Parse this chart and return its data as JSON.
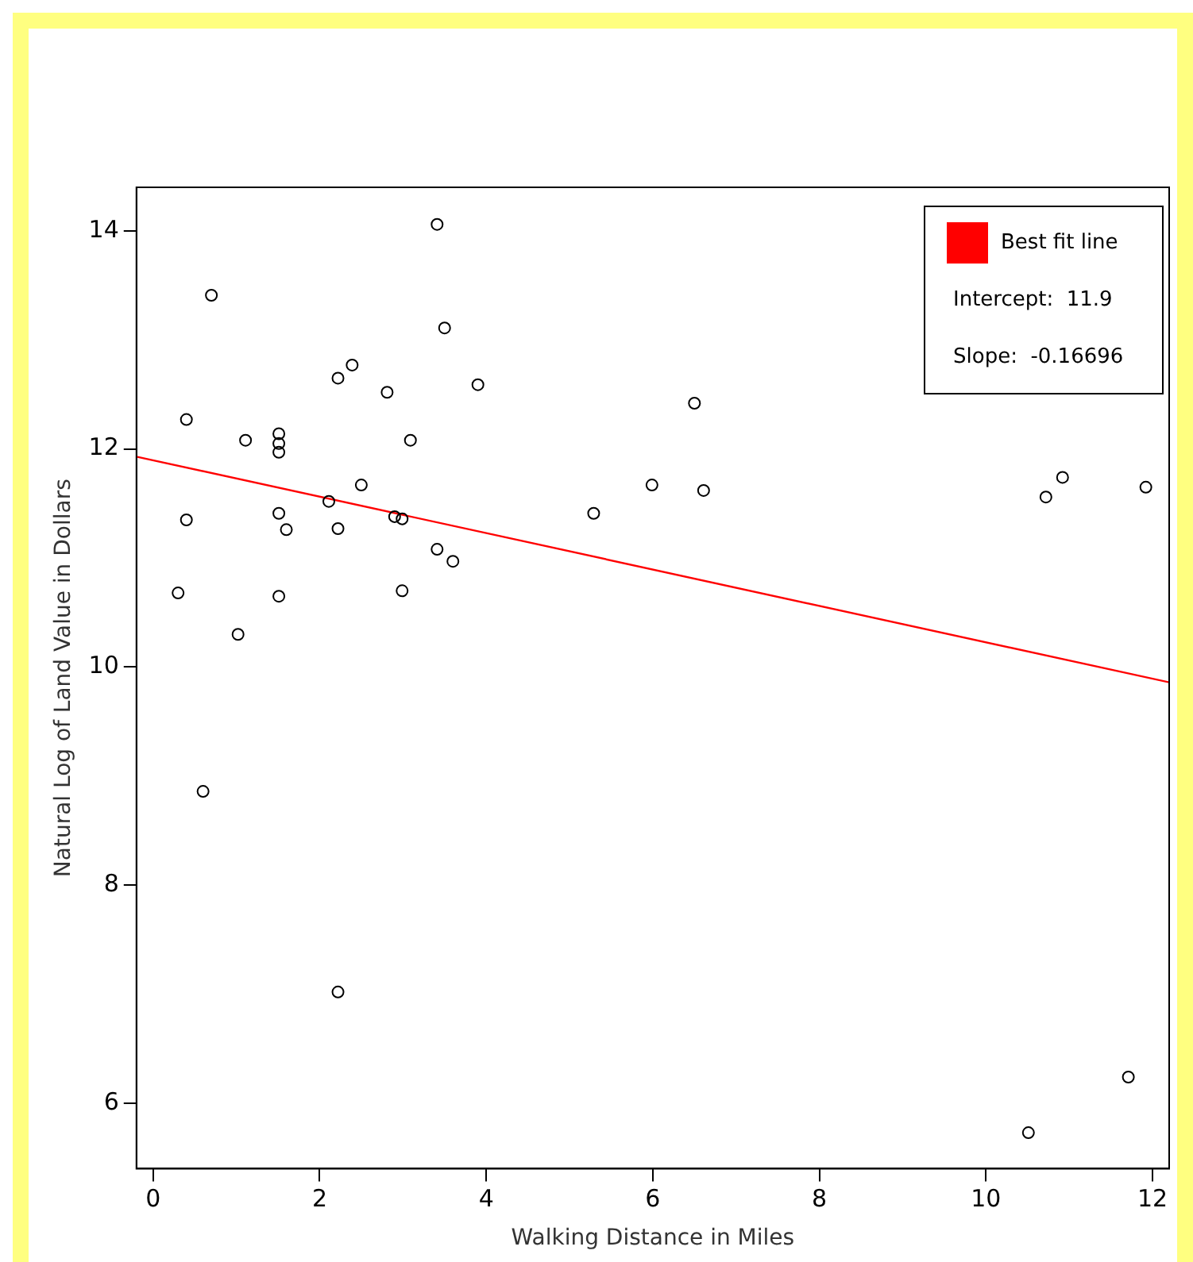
{
  "chart_data": {
    "type": "scatter",
    "xlabel": "Walking Distance in Miles",
    "ylabel": "Natural Log of Land Value in Dollars",
    "annotations": [
      "Intercept:  11.9",
      "Slope:  -0.16696"
    ],
    "xlim": [
      -0.2,
      12.2
    ],
    "xticks": [
      0,
      2,
      4,
      6,
      8,
      10,
      12
    ],
    "ylim": [
      5.4,
      14.4
    ],
    "yticks": [
      6,
      8,
      10,
      12,
      14
    ],
    "grid": false,
    "legend": "top right",
    "marker": "circle",
    "series": [
      {
        "type": "scatter",
        "color": "#000000",
        "x": [
          0.3,
          0.4,
          0.4,
          0.6,
          0.7,
          1.02,
          1.11,
          1.51,
          1.51,
          1.51,
          1.51,
          1.51,
          1.6,
          2.11,
          2.22,
          2.22,
          2.39,
          2.22,
          2.5,
          2.81,
          2.9,
          2.99,
          2.99,
          3.09,
          3.41,
          3.41,
          3.5,
          3.6,
          3.9,
          5.29,
          5.99,
          6.5,
          6.61,
          10.72,
          10.92,
          11.92,
          10.51,
          11.71
        ],
        "values": [
          10.68,
          12.27,
          11.35,
          8.86,
          13.41,
          10.3,
          12.08,
          12.14,
          12.05,
          11.97,
          11.41,
          10.65,
          11.26,
          11.52,
          12.65,
          11.27,
          12.77,
          7.02,
          11.67,
          12.52,
          11.38,
          11.36,
          10.7,
          12.08,
          14.06,
          11.08,
          13.11,
          10.97,
          12.59,
          11.41,
          11.67,
          12.42,
          11.62,
          11.56,
          11.74,
          11.65,
          5.73,
          6.24
        ]
      },
      {
        "type": "line",
        "name": "Best fit line",
        "color": "#ff0000",
        "line_style": "solid",
        "marker": "none",
        "x": [
          -0.2,
          12.2
        ],
        "values": [
          11.93,
          9.86
        ]
      }
    ]
  }
}
